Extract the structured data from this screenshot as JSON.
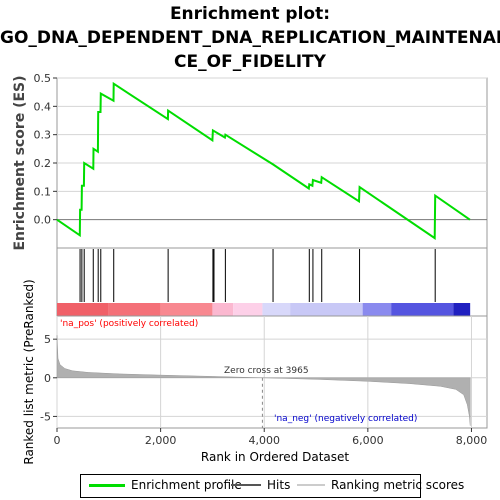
{
  "title_lines": [
    "Enrichment plot:",
    "GO_DNA_DEPENDENT_DNA_REPLICATION_MAINTENAN",
    "CE_OF_FIDELITY"
  ],
  "colors": {
    "enrichment": "#00dd00",
    "hits": "#000000",
    "metric_fill": "#b0b0b0",
    "pos_label": "#ff0000",
    "neg_label": "#0000cc",
    "grid": "#d4d4d4"
  },
  "chart_data": [
    {
      "type": "line",
      "name": "enrichment-profile",
      "ylabel": "Enrichment score (ES)",
      "xlim": [
        0,
        8300
      ],
      "ylim": [
        -0.1,
        0.5
      ],
      "yticks": [
        0.0,
        0.1,
        0.2,
        0.3,
        0.4,
        0.5
      ],
      "points": [
        [
          0,
          0.0
        ],
        [
          440,
          -0.055
        ],
        [
          445,
          0.035
        ],
        [
          475,
          0.035
        ],
        [
          480,
          0.12
        ],
        [
          520,
          0.12
        ],
        [
          525,
          0.2
        ],
        [
          700,
          0.18
        ],
        [
          705,
          0.25
        ],
        [
          790,
          0.24
        ],
        [
          795,
          0.38
        ],
        [
          840,
          0.38
        ],
        [
          845,
          0.445
        ],
        [
          1090,
          0.42
        ],
        [
          1095,
          0.48
        ],
        [
          2140,
          0.355
        ],
        [
          2145,
          0.385
        ],
        [
          3000,
          0.28
        ],
        [
          3010,
          0.315
        ],
        [
          3240,
          0.29
        ],
        [
          3250,
          0.3
        ],
        [
          4170,
          0.195
        ],
        [
          4860,
          0.11
        ],
        [
          4870,
          0.125
        ],
        [
          4930,
          0.12
        ],
        [
          4940,
          0.14
        ],
        [
          5100,
          0.13
        ],
        [
          5110,
          0.15
        ],
        [
          5830,
          0.065
        ],
        [
          5840,
          0.115
        ],
        [
          7290,
          -0.065
        ],
        [
          7300,
          0.085
        ],
        [
          7970,
          0.0
        ]
      ]
    },
    {
      "type": "scatter",
      "name": "hits",
      "x": [
        445,
        480,
        525,
        700,
        795,
        845,
        1095,
        2145,
        3010,
        3030,
        3250,
        4170,
        4870,
        4940,
        5110,
        5840,
        7300
      ]
    },
    {
      "type": "area",
      "name": "ranked-list-metric",
      "xlabel": "Rank in Ordered Dataset",
      "ylabel": "Ranked list metric (PreRanked)",
      "xlim": [
        0,
        8300
      ],
      "ylim": [
        -6.5,
        8
      ],
      "xticks": [
        0,
        2000,
        4000,
        6000,
        8000
      ],
      "xtick_labels": [
        "0",
        "2,000",
        "4,000",
        "6,000",
        "8,000"
      ],
      "yticks": [
        -5,
        0,
        5
      ],
      "zero_cross": 3965,
      "zero_cross_label": "Zero cross at 3965",
      "pos_label": "'na_pos' (positively correlated)",
      "neg_label": "'na_neg' (negatively correlated)",
      "points": [
        [
          0,
          5.5
        ],
        [
          20,
          2.5
        ],
        [
          60,
          1.7
        ],
        [
          150,
          1.2
        ],
        [
          300,
          0.9
        ],
        [
          600,
          0.7
        ],
        [
          1200,
          0.5
        ],
        [
          2000,
          0.35
        ],
        [
          3000,
          0.18
        ],
        [
          3965,
          0.0
        ],
        [
          5000,
          -0.2
        ],
        [
          6000,
          -0.45
        ],
        [
          6800,
          -0.75
        ],
        [
          7400,
          -1.1
        ],
        [
          7700,
          -1.5
        ],
        [
          7850,
          -2.2
        ],
        [
          7920,
          -3.5
        ],
        [
          7960,
          -5.0
        ],
        [
          7975,
          -6.2
        ]
      ]
    }
  ],
  "colorbar": [
    {
      "start": 0,
      "end": 1000,
      "color": "#f06068"
    },
    {
      "start": 1000,
      "end": 2000,
      "color": "#f47078"
    },
    {
      "start": 2000,
      "end": 3000,
      "color": "#f88890"
    },
    {
      "start": 3000,
      "end": 3400,
      "color": "#fbb8d0"
    },
    {
      "start": 3400,
      "end": 3965,
      "color": "#fdd0e8"
    },
    {
      "start": 3965,
      "end": 4500,
      "color": "#d8d8fa"
    },
    {
      "start": 4500,
      "end": 5900,
      "color": "#c8c8f6"
    },
    {
      "start": 5900,
      "end": 6450,
      "color": "#8a8aee"
    },
    {
      "start": 6450,
      "end": 7650,
      "color": "#5555e0"
    },
    {
      "start": 7650,
      "end": 7975,
      "color": "#2020c0"
    }
  ],
  "legend": {
    "enrichment": "Enrichment profile",
    "hits": "Hits",
    "metric": "Ranking metric scores"
  }
}
